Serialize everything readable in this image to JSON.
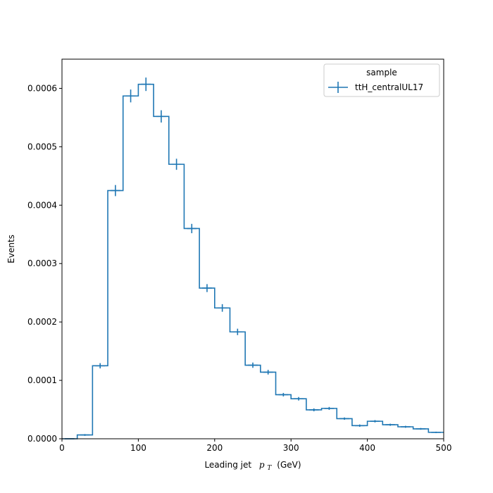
{
  "chart_data": {
    "type": "histogram",
    "xlabel": "Leading jet",
    "xlabel_math": "p",
    "xlabel_math_sub": "T",
    "xlabel_unit": "(GeV)",
    "ylabel": "Events",
    "xlim": [
      0,
      500
    ],
    "ylim": [
      0,
      0.00065
    ],
    "x_ticks": [
      0,
      100,
      200,
      300,
      400,
      500
    ],
    "x_tick_labels": [
      "0",
      "100",
      "200",
      "300",
      "400",
      "500"
    ],
    "y_ticks": [
      0,
      0.0001,
      0.0002,
      0.0003,
      0.0004,
      0.0005,
      0.0006
    ],
    "y_tick_labels": [
      "0.0000",
      "0.0001",
      "0.0002",
      "0.0003",
      "0.0004",
      "0.0005",
      "0.0006"
    ],
    "grid": false,
    "legend": {
      "title": "sample",
      "placement": "top-right"
    },
    "series": [
      {
        "name": "ttH_centralUL17",
        "color": "#1f77b4",
        "bin_edges": [
          0,
          20,
          40,
          60,
          80,
          100,
          120,
          140,
          160,
          180,
          200,
          220,
          240,
          260,
          280,
          300,
          320,
          340,
          360,
          380,
          400,
          420,
          440,
          460,
          480,
          500
        ],
        "values": [
          0.0,
          6.5e-06,
          0.000125,
          0.000425,
          0.000587,
          0.000607,
          0.000552,
          0.00047,
          0.00036,
          0.000258,
          0.000224,
          0.000183,
          0.000126,
          0.000114,
          7.55e-05,
          6.85e-05,
          4.95e-05,
          5.2e-05,
          3.45e-05,
          2.25e-05,
          3e-05,
          2.4e-05,
          2.05e-05,
          1.7e-05,
          1.1e-05
        ],
        "errors": [
          0.0,
          1.5e-06,
          4.5e-06,
          9.5e-06,
          1.1e-05,
          1.15e-05,
          1.05e-05,
          9.5e-06,
          8e-06,
          6.8e-06,
          6.5e-06,
          5.5e-06,
          4.5e-06,
          4e-06,
          3e-06,
          3e-06,
          2.5e-06,
          2.5e-06,
          2e-06,
          2e-06,
          2e-06,
          1.8e-06,
          1.7e-06,
          1.5e-06,
          1.2e-06
        ]
      }
    ]
  }
}
